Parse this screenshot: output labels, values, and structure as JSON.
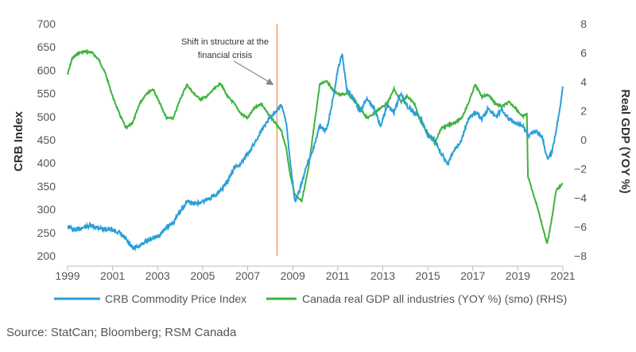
{
  "chart_data": {
    "type": "line",
    "title": "",
    "y_left": {
      "label": "CRB Index",
      "range": [
        200,
        700
      ],
      "ticks": [
        200,
        250,
        300,
        350,
        400,
        450,
        500,
        550,
        600,
        650,
        700
      ]
    },
    "y_right": {
      "label": "Real GDP (YOY %)",
      "range": [
        -8,
        8
      ],
      "ticks": [
        -8,
        -6,
        -4,
        -2,
        0,
        2,
        4,
        6,
        8
      ]
    },
    "x": {
      "range": [
        1999,
        2021
      ],
      "ticks": [
        1999,
        2001,
        2003,
        2005,
        2007,
        2009,
        2011,
        2013,
        2015,
        2017,
        2019,
        2021
      ]
    },
    "grid": false,
    "legend_position": "bottom",
    "annotation": {
      "line1": "Shift in structure at the",
      "line2": "financial crisis",
      "vline_x": 2008.3,
      "arrow_target": [
        2008.3,
        4.0
      ]
    },
    "series": [
      {
        "name": "CRB Commodity Price Index",
        "axis": "left",
        "color": "#2a9fd8",
        "points": [
          [
            1999.0,
            265
          ],
          [
            1999.3,
            255
          ],
          [
            1999.6,
            260
          ],
          [
            2000.0,
            265
          ],
          [
            2000.3,
            262
          ],
          [
            2000.6,
            258
          ],
          [
            2001.0,
            256
          ],
          [
            2001.3,
            250
          ],
          [
            2001.6,
            235
          ],
          [
            2001.9,
            215
          ],
          [
            2002.2,
            222
          ],
          [
            2002.5,
            232
          ],
          [
            2002.8,
            238
          ],
          [
            2003.1,
            245
          ],
          [
            2003.4,
            262
          ],
          [
            2003.7,
            272
          ],
          [
            2004.0,
            295
          ],
          [
            2004.3,
            318
          ],
          [
            2004.6,
            312
          ],
          [
            2004.9,
            315
          ],
          [
            2005.2,
            322
          ],
          [
            2005.5,
            330
          ],
          [
            2005.8,
            340
          ],
          [
            2006.1,
            360
          ],
          [
            2006.4,
            390
          ],
          [
            2006.7,
            398
          ],
          [
            2007.0,
            420
          ],
          [
            2007.3,
            442
          ],
          [
            2007.6,
            470
          ],
          [
            2007.9,
            492
          ],
          [
            2008.2,
            510
          ],
          [
            2008.5,
            525
          ],
          [
            2008.7,
            490
          ],
          [
            2008.9,
            400
          ],
          [
            2009.1,
            318
          ],
          [
            2009.3,
            340
          ],
          [
            2009.6,
            390
          ],
          [
            2009.9,
            430
          ],
          [
            2010.2,
            480
          ],
          [
            2010.5,
            470
          ],
          [
            2010.8,
            540
          ],
          [
            2011.0,
            600
          ],
          [
            2011.2,
            635
          ],
          [
            2011.4,
            560
          ],
          [
            2011.7,
            540
          ],
          [
            2012.0,
            510
          ],
          [
            2012.3,
            540
          ],
          [
            2012.6,
            520
          ],
          [
            2012.9,
            480
          ],
          [
            2013.2,
            525
          ],
          [
            2013.5,
            510
          ],
          [
            2013.8,
            550
          ],
          [
            2014.1,
            520
          ],
          [
            2014.4,
            510
          ],
          [
            2014.7,
            495
          ],
          [
            2015.0,
            460
          ],
          [
            2015.3,
            450
          ],
          [
            2015.6,
            420
          ],
          [
            2015.9,
            398
          ],
          [
            2016.2,
            430
          ],
          [
            2016.5,
            450
          ],
          [
            2016.8,
            495
          ],
          [
            2017.1,
            510
          ],
          [
            2017.4,
            495
          ],
          [
            2017.7,
            520
          ],
          [
            2018.0,
            500
          ],
          [
            2018.3,
            515
          ],
          [
            2018.6,
            495
          ],
          [
            2018.9,
            485
          ],
          [
            2019.2,
            480
          ],
          [
            2019.5,
            460
          ],
          [
            2019.8,
            470
          ],
          [
            2020.1,
            455
          ],
          [
            2020.3,
            410
          ],
          [
            2020.5,
            420
          ],
          [
            2020.7,
            470
          ],
          [
            2020.9,
            530
          ],
          [
            2021.0,
            565
          ]
        ]
      },
      {
        "name": "Canada real GDP all industries (YOY %) (smo) (RHS)",
        "axis": "right",
        "color": "#3cb43c",
        "points": [
          [
            1999.0,
            4.5
          ],
          [
            1999.2,
            5.6
          ],
          [
            1999.5,
            6.0
          ],
          [
            1999.8,
            6.1
          ],
          [
            2000.1,
            6.0
          ],
          [
            2000.4,
            5.5
          ],
          [
            2000.7,
            4.5
          ],
          [
            2001.0,
            3.0
          ],
          [
            2001.3,
            1.8
          ],
          [
            2001.6,
            0.8
          ],
          [
            2001.9,
            1.2
          ],
          [
            2002.2,
            2.5
          ],
          [
            2002.5,
            3.2
          ],
          [
            2002.8,
            3.5
          ],
          [
            2003.1,
            2.5
          ],
          [
            2003.4,
            1.5
          ],
          [
            2003.7,
            1.5
          ],
          [
            2004.0,
            2.8
          ],
          [
            2004.3,
            3.8
          ],
          [
            2004.6,
            3.2
          ],
          [
            2004.9,
            2.8
          ],
          [
            2005.2,
            3.0
          ],
          [
            2005.5,
            3.5
          ],
          [
            2005.8,
            3.9
          ],
          [
            2006.1,
            3.0
          ],
          [
            2006.4,
            2.5
          ],
          [
            2006.7,
            1.8
          ],
          [
            2007.0,
            1.5
          ],
          [
            2007.3,
            2.2
          ],
          [
            2007.6,
            2.5
          ],
          [
            2007.9,
            1.8
          ],
          [
            2008.2,
            1.2
          ],
          [
            2008.5,
            0.6
          ],
          [
            2008.7,
            -0.5
          ],
          [
            2008.9,
            -2.5
          ],
          [
            2009.1,
            -3.8
          ],
          [
            2009.4,
            -4.2
          ],
          [
            2009.7,
            -2.0
          ],
          [
            2010.0,
            1.5
          ],
          [
            2010.2,
            3.8
          ],
          [
            2010.5,
            4.1
          ],
          [
            2010.8,
            3.4
          ],
          [
            2011.1,
            3.1
          ],
          [
            2011.4,
            3.2
          ],
          [
            2011.7,
            2.8
          ],
          [
            2012.0,
            2.2
          ],
          [
            2012.3,
            1.5
          ],
          [
            2012.6,
            1.8
          ],
          [
            2012.9,
            2.2
          ],
          [
            2013.2,
            2.5
          ],
          [
            2013.5,
            3.5
          ],
          [
            2013.8,
            2.6
          ],
          [
            2014.1,
            3.0
          ],
          [
            2014.4,
            2.5
          ],
          [
            2014.7,
            1.2
          ],
          [
            2015.0,
            0.5
          ],
          [
            2015.3,
            -0.2
          ],
          [
            2015.6,
            0.8
          ],
          [
            2015.9,
            1.0
          ],
          [
            2016.2,
            1.2
          ],
          [
            2016.5,
            1.5
          ],
          [
            2016.8,
            2.5
          ],
          [
            2017.1,
            3.8
          ],
          [
            2017.4,
            3.0
          ],
          [
            2017.7,
            3.1
          ],
          [
            2018.0,
            2.5
          ],
          [
            2018.3,
            2.3
          ],
          [
            2018.6,
            2.6
          ],
          [
            2018.9,
            2.2
          ],
          [
            2019.2,
            1.6
          ],
          [
            2019.4,
            1.8
          ],
          [
            2019.45,
            -2.5
          ],
          [
            2019.7,
            -3.8
          ],
          [
            2019.9,
            -4.8
          ],
          [
            2020.1,
            -6.0
          ],
          [
            2020.3,
            -7.2
          ],
          [
            2020.5,
            -5.5
          ],
          [
            2020.7,
            -3.5
          ],
          [
            2021.0,
            -3.0
          ]
        ]
      }
    ]
  },
  "source": "Source: StatCan; Bloomberg; RSM Canada"
}
